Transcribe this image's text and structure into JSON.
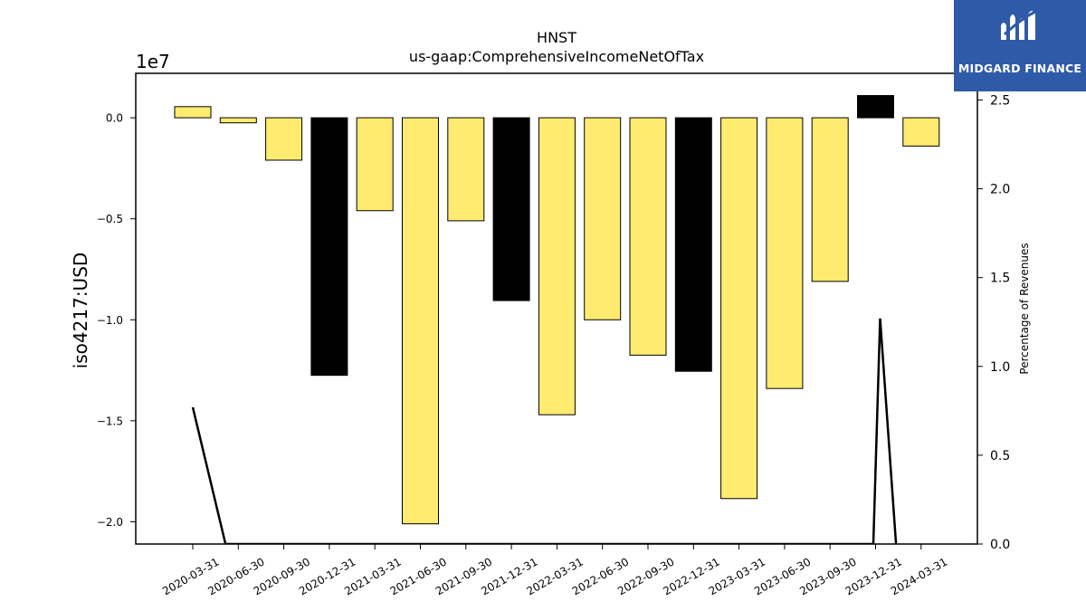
{
  "chart_data": {
    "type": "bar",
    "title": "HNST",
    "subtitle": "us-gaap:ComprehensiveIncomeNetOfTax",
    "ylabel": "iso4217:USD",
    "y_offset_label": "1e7",
    "y2label": "Percentage of Revenues",
    "ylim": [
      -21100000.0,
      2200000.0
    ],
    "y2lim": [
      0.0,
      2.65
    ],
    "yticks": [
      {
        "value": 0,
        "label": "0.0"
      },
      {
        "value": -5000000,
        "label": "−0.5"
      },
      {
        "value": -10000000,
        "label": "−1.0"
      },
      {
        "value": -15000000,
        "label": "−1.5"
      },
      {
        "value": -20000000,
        "label": "−2.0"
      }
    ],
    "y2ticks": [
      {
        "value": 0.0,
        "label": "0.0"
      },
      {
        "value": 0.5,
        "label": "0.5"
      },
      {
        "value": 1.0,
        "label": "1.0"
      },
      {
        "value": 1.5,
        "label": "1.5"
      },
      {
        "value": 2.0,
        "label": "2.0"
      },
      {
        "value": 2.5,
        "label": "2.5"
      }
    ],
    "categories": [
      "2020-03-31",
      "2020-06-30",
      "2020-09-30",
      "2020-12-31",
      "2021-03-31",
      "2021-06-30",
      "2021-09-30",
      "2021-12-31",
      "2022-03-31",
      "2022-06-30",
      "2022-09-30",
      "2022-12-31",
      "2023-03-31",
      "2023-06-30",
      "2023-09-30",
      "2023-12-31",
      "2024-03-31"
    ],
    "values": [
      550000,
      -250000,
      -2100000,
      -12750000,
      -4600000,
      -20100000,
      -5100000,
      -9050000,
      -14700000,
      -10000000,
      -11750000,
      -12550000,
      -18850000,
      -13400000,
      -8100000,
      1100000,
      -1400000
    ],
    "bar_colors": [
      "#ffeb6f",
      "#ffeb6f",
      "#ffeb6f",
      "#000000",
      "#ffeb6f",
      "#ffeb6f",
      "#ffeb6f",
      "#000000",
      "#ffeb6f",
      "#ffeb6f",
      "#ffeb6f",
      "#000000",
      "#ffeb6f",
      "#ffeb6f",
      "#ffeb6f",
      "#000000",
      "#ffeb6f"
    ],
    "line_series": {
      "axis": "right",
      "color": "#000000",
      "points": [
        {
          "x": 0.0,
          "y": 0.77
        },
        {
          "x": 0.72,
          "y": 0.0
        },
        {
          "x": 14.95,
          "y": 0.0
        },
        {
          "x": 15.1,
          "y": 1.27
        },
        {
          "x": 15.45,
          "y": 0.0
        }
      ]
    },
    "grid": false,
    "legend": "none"
  },
  "logo": {
    "text": "MIDGARD FINANCE",
    "color": "#2f5aa8"
  }
}
